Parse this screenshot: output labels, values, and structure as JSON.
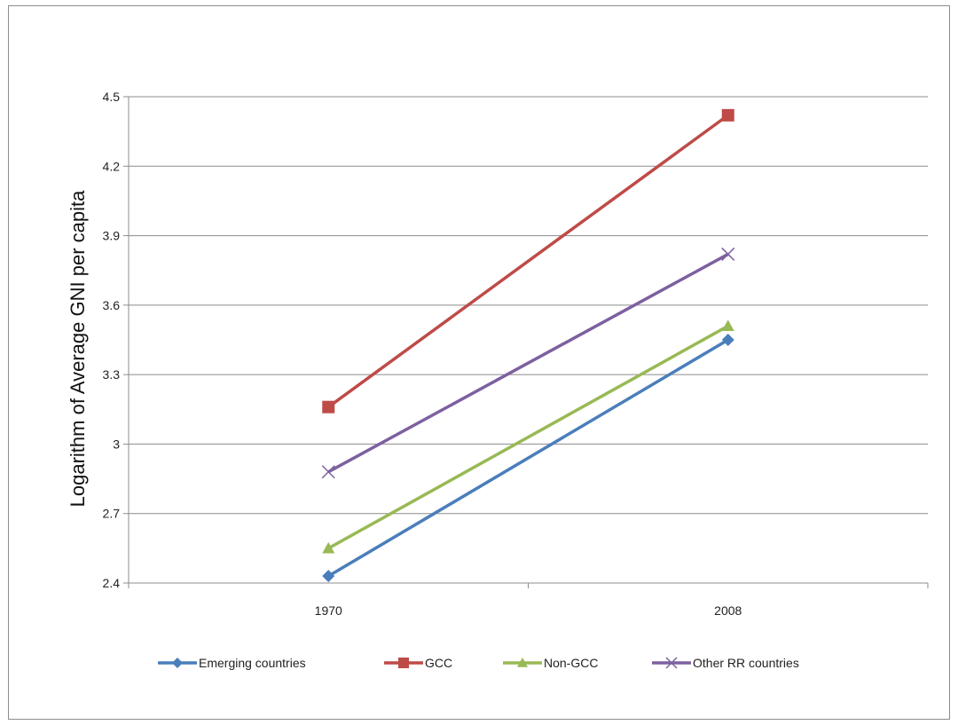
{
  "chart_data": {
    "type": "line",
    "title": "",
    "xlabel": "",
    "ylabel": "Logarithm of  Average GNI per capita",
    "categories": [
      "1970",
      "2008"
    ],
    "ylim": [
      2.4,
      4.5
    ],
    "yticks": [
      "2.4",
      "2.7",
      "3",
      "3.3",
      "3.6",
      "3.9",
      "4.2",
      "4.5"
    ],
    "grid": true,
    "legend_position": "bottom",
    "series": [
      {
        "name": "Emerging countries",
        "values": [
          2.43,
          3.45
        ],
        "color": "#4a7ebb",
        "marker": "diamond"
      },
      {
        "name": "GCC",
        "values": [
          3.16,
          4.42
        ],
        "color": "#be4b48",
        "marker": "square"
      },
      {
        "name": "Non-GCC",
        "values": [
          2.55,
          3.51
        ],
        "color": "#98b954",
        "marker": "triangle"
      },
      {
        "name": "Other RR countries",
        "values": [
          2.88,
          3.82
        ],
        "color": "#7d60a0",
        "marker": "x"
      }
    ]
  }
}
